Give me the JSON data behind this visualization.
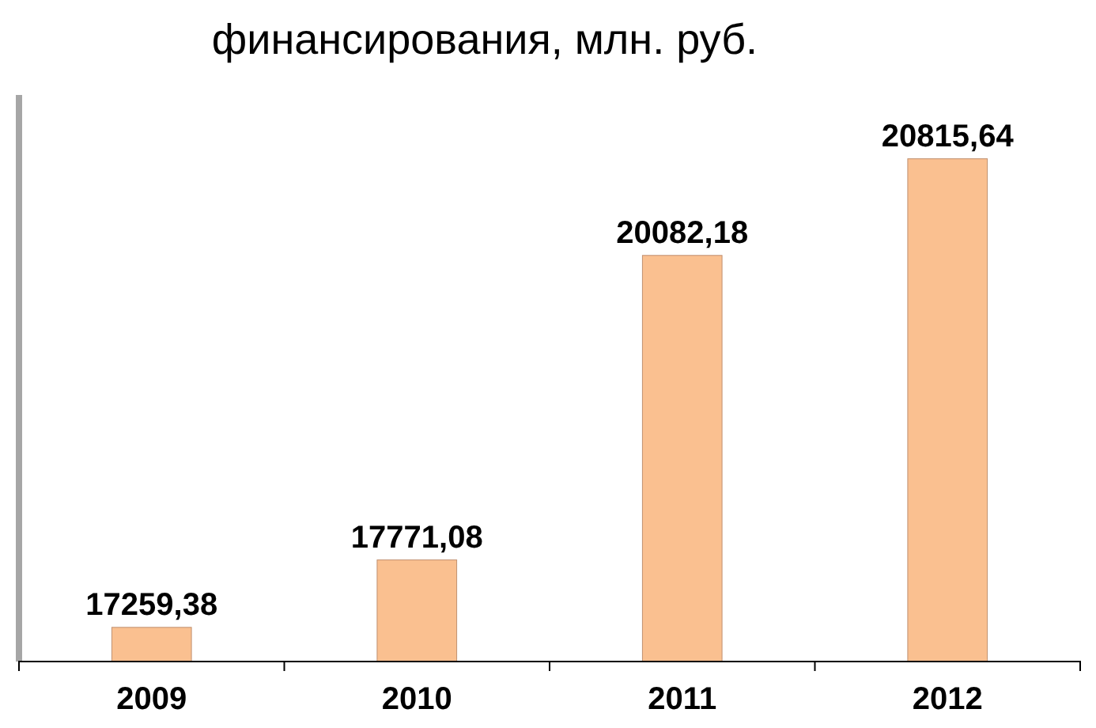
{
  "chart_data": {
    "type": "bar",
    "title": "финансирования, млн. руб.",
    "categories": [
      "2009",
      "2010",
      "2011",
      "2012"
    ],
    "values": [
      17259.38,
      17771.08,
      20082.18,
      20815.64
    ],
    "value_labels": [
      "17259,38",
      "17771,08",
      "20082,18",
      "20815,64"
    ],
    "color": "#fac090",
    "ylim": [
      17000,
      21300
    ],
    "tick_labels": "x"
  }
}
